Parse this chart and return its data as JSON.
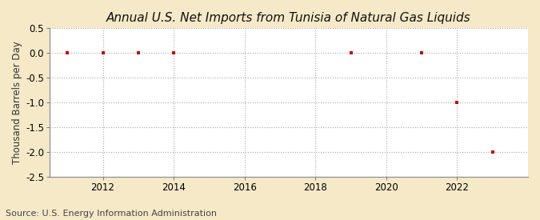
{
  "title": "Annual U.S. Net Imports from Tunisia of Natural Gas Liquids",
  "ylabel": "Thousand Barrels per Day",
  "source": "Source: U.S. Energy Information Administration",
  "background_color": "#f5e9c8",
  "plot_background_color": "#ffffff",
  "grid_color": "#aaaaaa",
  "data_x": [
    2011,
    2012,
    2013,
    2014,
    2019,
    2021,
    2022,
    2023
  ],
  "data_y": [
    0,
    0,
    0,
    0,
    0,
    0,
    -1,
    -2
  ],
  "marker_color": "#cc0000",
  "xlim": [
    2010.5,
    2024.0
  ],
  "ylim": [
    -2.5,
    0.5
  ],
  "xticks": [
    2012,
    2014,
    2016,
    2018,
    2020,
    2022
  ],
  "yticks": [
    0.5,
    0.0,
    -0.5,
    -1.0,
    -1.5,
    -2.0,
    -2.5
  ],
  "title_fontsize": 11,
  "axis_fontsize": 8.5,
  "source_fontsize": 8
}
